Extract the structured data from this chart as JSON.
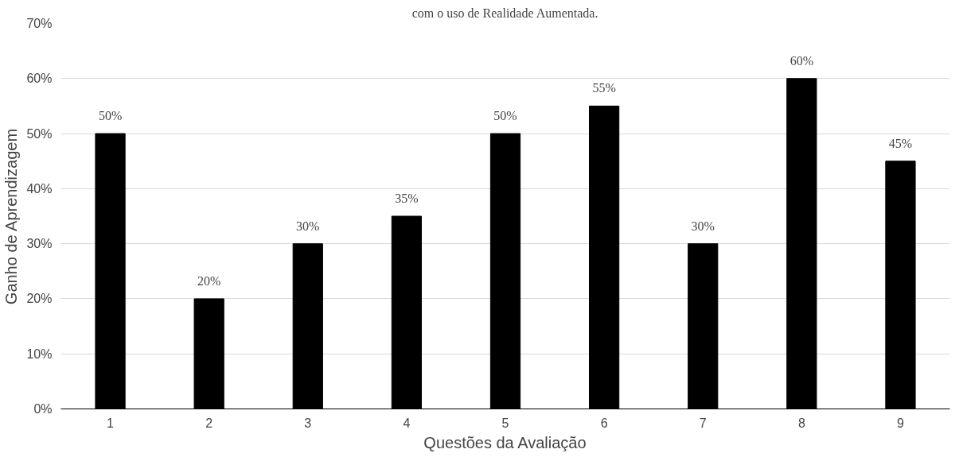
{
  "chart_data": {
    "type": "bar",
    "title": "com o uso de Realidade Aumentada.",
    "xlabel": "Questões da Avaliação",
    "ylabel": "Ganho de Aprendizagem",
    "categories": [
      "1",
      "2",
      "3",
      "4",
      "5",
      "6",
      "7",
      "8",
      "9"
    ],
    "values": [
      50,
      20,
      30,
      35,
      50,
      55,
      30,
      60,
      45
    ],
    "value_labels": [
      "50%",
      "20%",
      "30%",
      "35%",
      "50%",
      "55%",
      "30%",
      "60%",
      "45%"
    ],
    "color": "#000000",
    "ylim": [
      0,
      70
    ],
    "yticks": [
      {
        "value": 0,
        "label": "0%"
      },
      {
        "value": 10,
        "label": "10%"
      },
      {
        "value": 20,
        "label": "20%"
      },
      {
        "value": 30,
        "label": "30%"
      },
      {
        "value": 40,
        "label": "40%"
      },
      {
        "value": 50,
        "label": "50%"
      },
      {
        "value": 60,
        "label": "60%"
      },
      {
        "value": 70,
        "label": "70%"
      }
    ],
    "grid": "y"
  }
}
